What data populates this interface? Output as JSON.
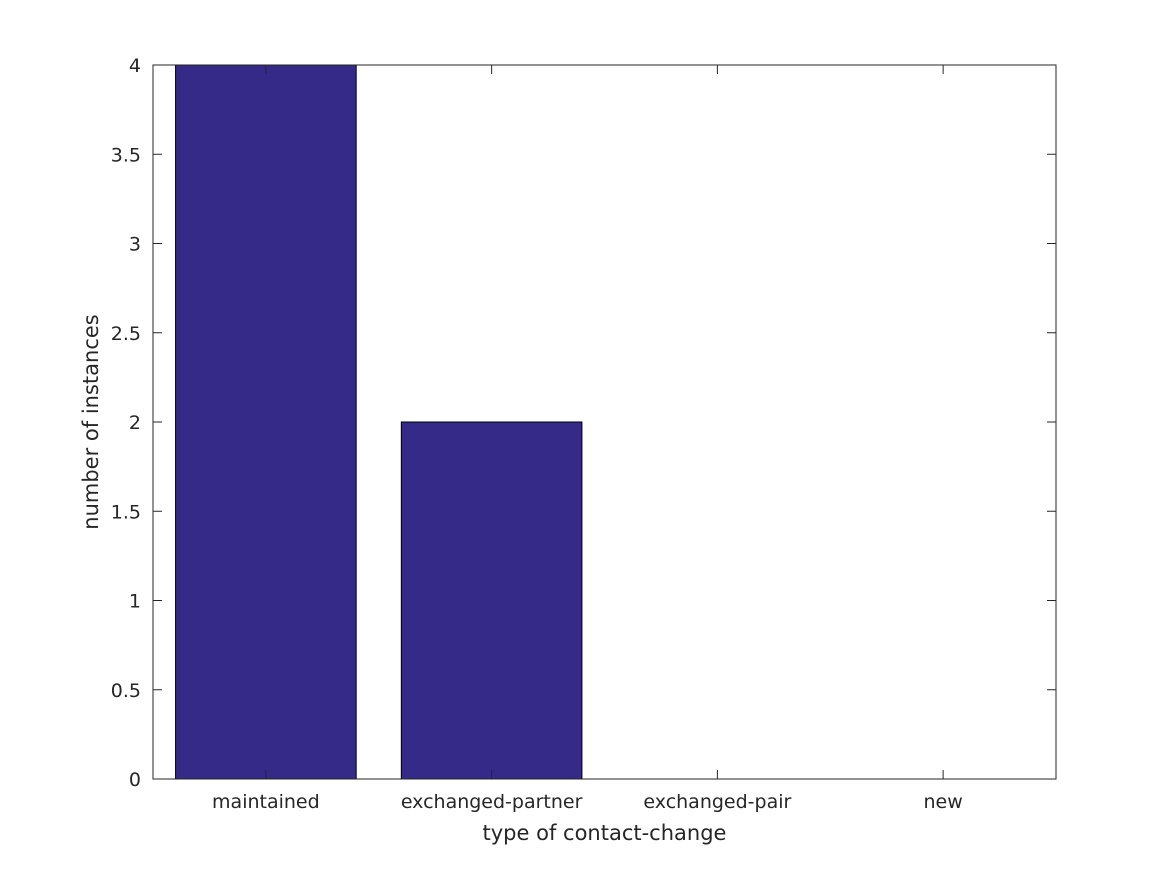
{
  "chart_data": {
    "type": "bar",
    "title": "",
    "xlabel": "type of contact-change",
    "ylabel": "number of instances",
    "categories": [
      "maintained",
      "exchanged-partner",
      "exchanged-pair",
      "new"
    ],
    "values": [
      4,
      2,
      0,
      0
    ],
    "ylim": [
      0,
      4
    ],
    "yticks": [
      0,
      0.5,
      1,
      1.5,
      2,
      2.5,
      3,
      3.5,
      4
    ],
    "ytick_labels": [
      "0",
      "0.5",
      "1",
      "1.5",
      "2",
      "2.5",
      "3",
      "3.5",
      "4"
    ],
    "grid": false,
    "bar_color": "#352a87",
    "bar_edge_color": "#000000"
  }
}
